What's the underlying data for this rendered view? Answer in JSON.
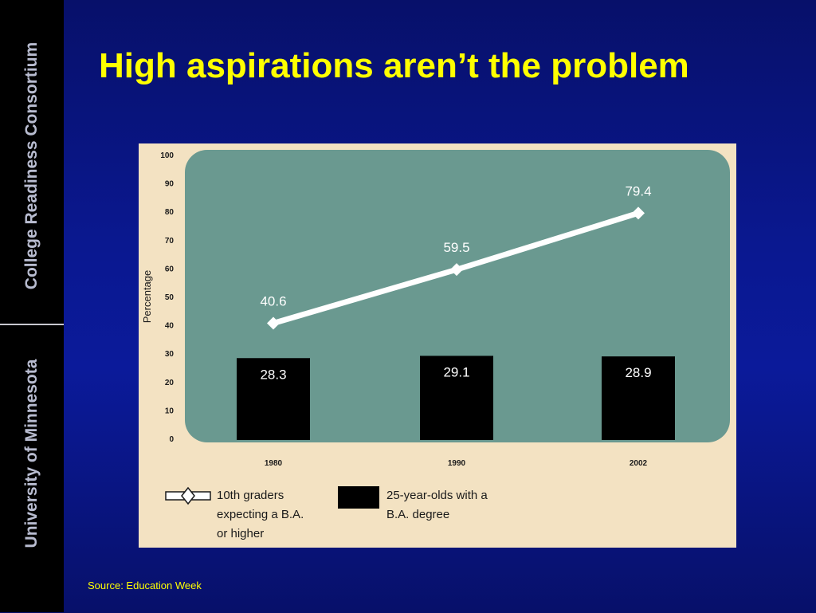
{
  "sidebar": {
    "top_text": "College Readiness Consortium",
    "bottom_text": "University of Minnesota"
  },
  "slide": {
    "title": "High aspirations aren’t the problem",
    "source": "Source:  Education Week"
  },
  "colors": {
    "background": "#0a1890",
    "title": "#ffff00",
    "panel": "#f3e2c2",
    "plot_area": "#6a9990",
    "line": "#ffffff",
    "bar": "#000000"
  },
  "chart_data": {
    "type": "bar",
    "categories": [
      "1980",
      "1990",
      "2002"
    ],
    "ylabel": "Percentage",
    "ylim": [
      0,
      100
    ],
    "yticks": [
      "0",
      "10",
      "20",
      "30",
      "40",
      "50",
      "60",
      "70",
      "80",
      "90",
      "100"
    ],
    "grid": false,
    "legend_position": "bottom-left",
    "series": [
      {
        "name": "10th graders expecting a B.A. or higher",
        "chart_type": "line",
        "values": [
          40.6,
          59.5,
          79.4
        ],
        "labels": [
          "40.6",
          "59.5",
          "79.4"
        ]
      },
      {
        "name": "25-year-olds with a B.A. degree",
        "chart_type": "bar",
        "values": [
          28.3,
          29.1,
          28.9
        ],
        "labels": [
          "28.3",
          "29.1",
          "28.9"
        ]
      }
    ],
    "legend": {
      "line_label_lines": [
        "10th graders",
        "expecting a B.A.",
        "or higher"
      ],
      "bar_label_lines": [
        "25-year-olds with a",
        "B.A. degree"
      ]
    }
  }
}
